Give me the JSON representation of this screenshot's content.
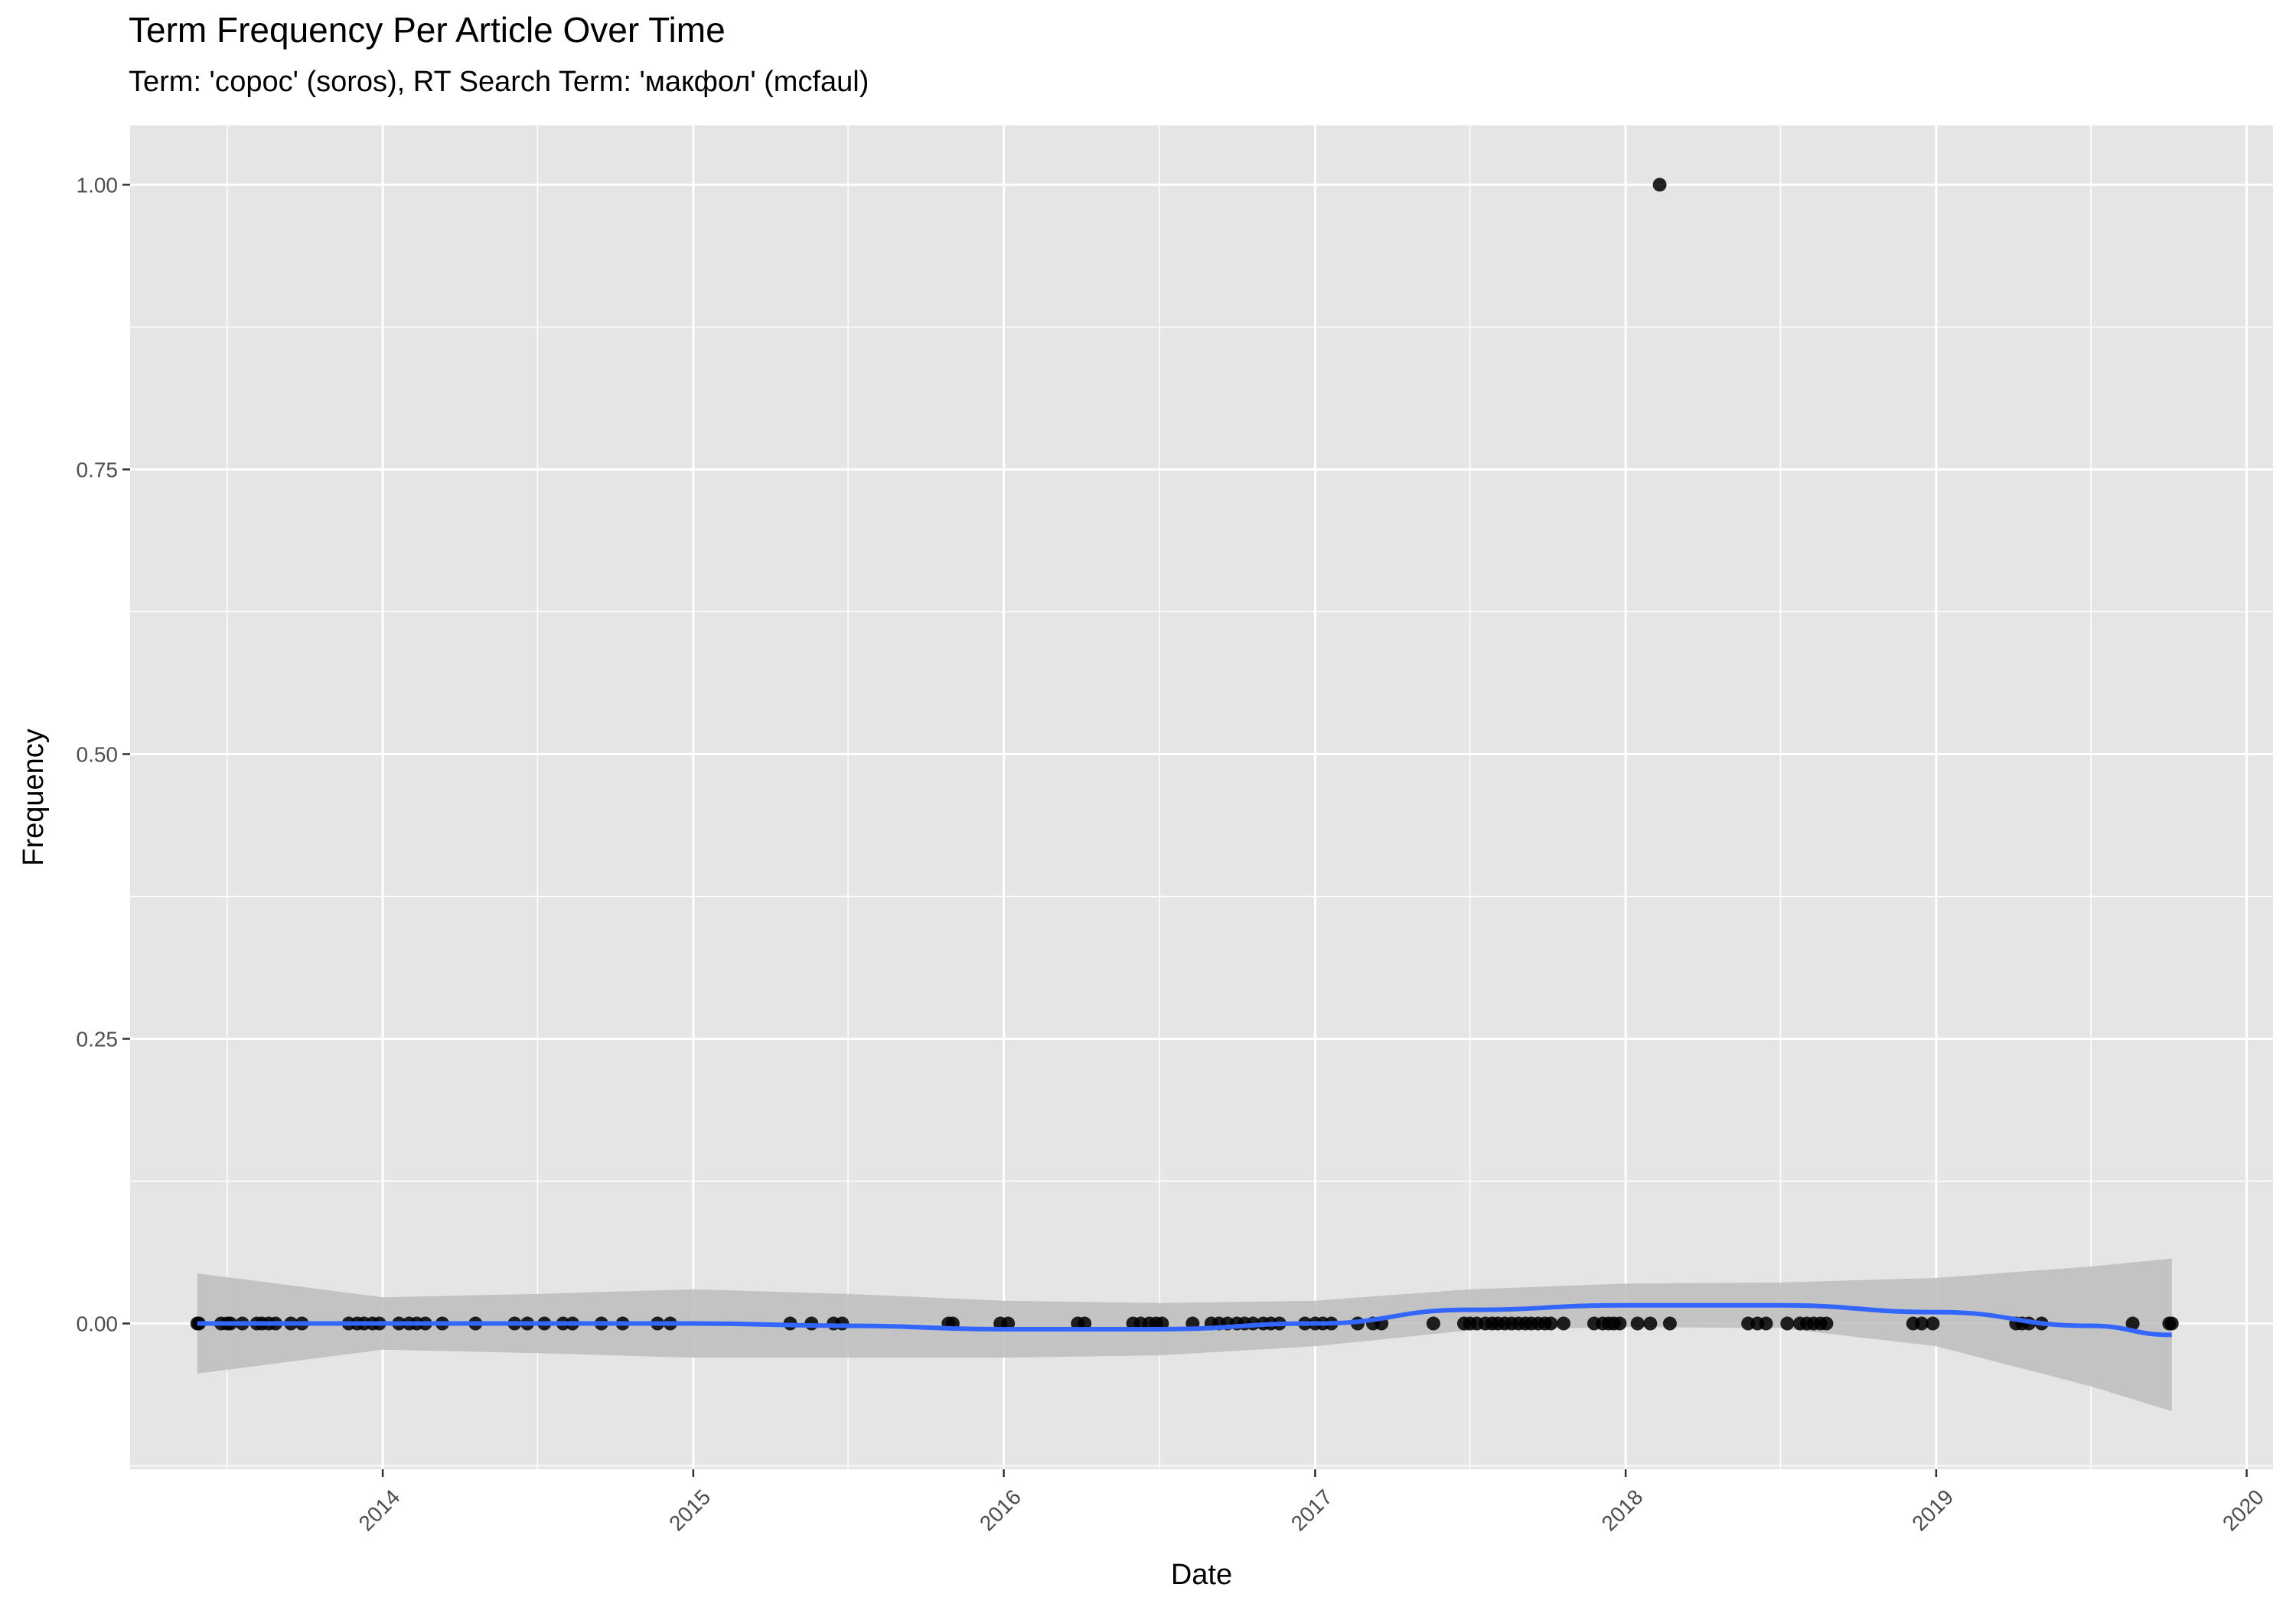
{
  "chart_data": {
    "type": "scatter",
    "title": "Term Frequency Per Article Over Time",
    "subtitle": "Term: 'сорос' (soros), RT Search Term: 'макфол' (mcfaul)",
    "xlabel": "Date",
    "ylabel": "Frequency",
    "x_ticks": [
      "2014",
      "2015",
      "2016",
      "2017",
      "2018",
      "2019",
      "2020"
    ],
    "y_ticks": [
      "0.00",
      "0.25",
      "0.50",
      "0.75",
      "1.00"
    ],
    "xlim": [
      "2013-03-10",
      "2020-02-01"
    ],
    "ylim": [
      -0.128,
      1.052
    ],
    "grid": true,
    "points": {
      "x": [
        "2013-05-28",
        "2013-05-30",
        "2013-06-25",
        "2013-07-02",
        "2013-07-06",
        "2013-07-20",
        "2013-08-06",
        "2013-08-12",
        "2013-08-20",
        "2013-08-28",
        "2013-09-15",
        "2013-09-28",
        "2013-11-22",
        "2013-12-02",
        "2013-12-10",
        "2013-12-20",
        "2013-12-28",
        "2014-01-20",
        "2014-02-01",
        "2014-02-10",
        "2014-02-20",
        "2014-03-12",
        "2014-04-20",
        "2014-06-05",
        "2014-06-20",
        "2014-07-10",
        "2014-08-01",
        "2014-08-12",
        "2014-09-15",
        "2014-10-10",
        "2014-11-20",
        "2014-12-05",
        "2015-04-25",
        "2015-05-20",
        "2015-06-15",
        "2015-06-25",
        "2015-10-28",
        "2015-11-02",
        "2015-12-28",
        "2016-01-06",
        "2016-03-28",
        "2016-04-05",
        "2016-06-01",
        "2016-06-10",
        "2016-06-20",
        "2016-06-28",
        "2016-07-05",
        "2016-08-10",
        "2016-09-01",
        "2016-09-10",
        "2016-09-20",
        "2016-10-01",
        "2016-10-10",
        "2016-10-20",
        "2016-11-01",
        "2016-11-10",
        "2016-11-20",
        "2016-12-20",
        "2017-01-01",
        "2017-01-10",
        "2017-01-20",
        "2017-02-20",
        "2017-03-10",
        "2017-03-20",
        "2017-05-20",
        "2017-06-25",
        "2017-07-02",
        "2017-07-10",
        "2017-07-20",
        "2017-07-28",
        "2017-08-04",
        "2017-08-12",
        "2017-08-20",
        "2017-08-28",
        "2017-09-05",
        "2017-09-12",
        "2017-09-20",
        "2017-09-28",
        "2017-10-05",
        "2017-10-20",
        "2017-11-25",
        "2017-12-05",
        "2017-12-12",
        "2017-12-18",
        "2017-12-25",
        "2018-01-15",
        "2018-01-30",
        "2018-02-10",
        "2018-02-22",
        "2018-05-25",
        "2018-06-05",
        "2018-06-15",
        "2018-07-10",
        "2018-07-25",
        "2018-08-02",
        "2018-08-10",
        "2018-08-18",
        "2018-08-25",
        "2018-12-05",
        "2018-12-15",
        "2018-12-28",
        "2019-04-05",
        "2019-04-12",
        "2019-04-20",
        "2019-05-05",
        "2019-08-20",
        "2019-10-02",
        "2019-10-05"
      ],
      "y": [
        0,
        0,
        0,
        0,
        0,
        0,
        0,
        0,
        0,
        0,
        0,
        0,
        0,
        0,
        0,
        0,
        0,
        0,
        0,
        0,
        0,
        0,
        0,
        0,
        0,
        0,
        0,
        0,
        0,
        0,
        0,
        0,
        0,
        0,
        0,
        0,
        0,
        0,
        0,
        0,
        0,
        0,
        0,
        0,
        0,
        0,
        0,
        0,
        0,
        0,
        0,
        0,
        0,
        0,
        0,
        0,
        0,
        0,
        0,
        0,
        0,
        0,
        0,
        0,
        0,
        0,
        0,
        0,
        0,
        0,
        0,
        0,
        0,
        0,
        0,
        0,
        0,
        0,
        0,
        0,
        0,
        0,
        0,
        0,
        0,
        0,
        0,
        1,
        0,
        0,
        0,
        0,
        0,
        0,
        0,
        0,
        0,
        0,
        0,
        0,
        0,
        0,
        0,
        0,
        0,
        0,
        0,
        0
      ]
    },
    "smooth": {
      "name": "",
      "color": "#3366ff",
      "x": [
        "2013-05-28",
        "2014-01-01",
        "2014-07-01",
        "2015-01-01",
        "2015-07-01",
        "2016-01-01",
        "2016-07-01",
        "2017-01-01",
        "2017-07-01",
        "2018-01-01",
        "2018-07-01",
        "2019-01-01",
        "2019-07-01",
        "2019-10-05"
      ],
      "y": [
        0.0,
        0.0,
        0.0,
        0.0,
        -0.002,
        -0.005,
        -0.005,
        0.0,
        0.012,
        0.016,
        0.016,
        0.01,
        -0.002,
        -0.01
      ],
      "ci_upper": [
        0.044,
        0.023,
        0.026,
        0.03,
        0.026,
        0.02,
        0.018,
        0.02,
        0.03,
        0.035,
        0.036,
        0.04,
        0.05,
        0.057
      ],
      "ci_lower": [
        -0.044,
        -0.023,
        -0.026,
        -0.03,
        -0.03,
        -0.03,
        -0.028,
        -0.02,
        -0.006,
        -0.003,
        -0.004,
        -0.02,
        -0.055,
        -0.077
      ]
    },
    "colors": {
      "panel": "#e5e5e5",
      "grid": "#ffffff",
      "points": "#000000",
      "ribbon": "#bdbdbd"
    }
  }
}
